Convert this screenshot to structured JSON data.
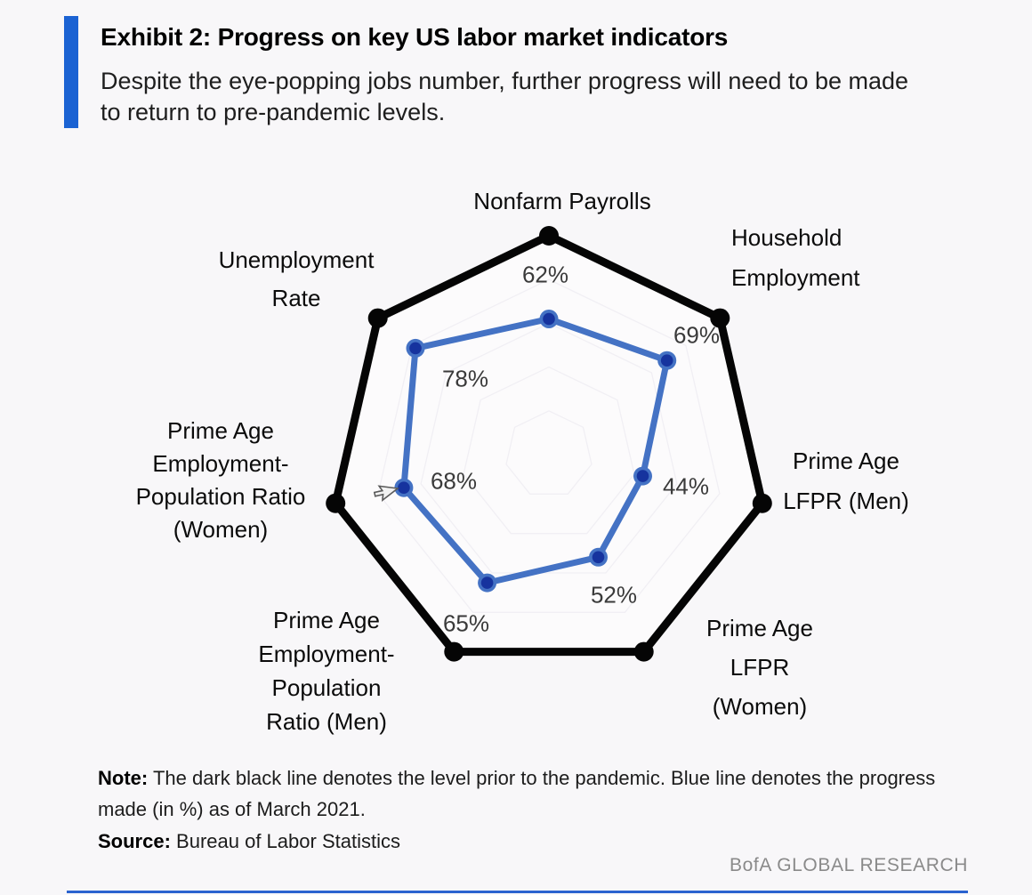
{
  "header": {
    "title": "Exhibit 2: Progress on key US labor market indicators",
    "subtitle": "Despite the eye-popping jobs number, further progress will need to be made\nto return to pre-pandemic levels."
  },
  "colors": {
    "accent_bar": "#1b63d3",
    "pre_pandemic_line": "#050505",
    "progress_line": "#4472c4",
    "progress_marker_inner": "#16339e",
    "gridline": "#e2dfe8",
    "bottom_rule": "#2a63cf"
  },
  "chart_data": {
    "type": "radar",
    "title": "Progress on key US labor market indicators",
    "axes": [
      {
        "label": "Nonfarm Payrolls",
        "value": 62
      },
      {
        "label": "Household\nEmployment",
        "value": 69
      },
      {
        "label": "Prime Age\nLFPR (Men)",
        "value": 44
      },
      {
        "label": "Prime Age\nLFPR\n(Women)",
        "value": 52
      },
      {
        "label": "Prime Age\nEmployment-\nPopulation\nRatio (Men)",
        "value": 65
      },
      {
        "label": "Prime Age\nEmployment-\nPopulation Ratio\n(Women)",
        "value": 68
      },
      {
        "label": "Unemployment\nRate",
        "value": 78
      }
    ],
    "series": [
      {
        "name": "Pre-pandemic level",
        "color": "#050505",
        "values": [
          100,
          100,
          100,
          100,
          100,
          100,
          100
        ]
      },
      {
        "name": "Progress as of March 2021",
        "color": "#4472c4",
        "values": [
          62,
          69,
          44,
          52,
          65,
          68,
          78
        ]
      }
    ],
    "value_labels": [
      "62%",
      "69%",
      "44%",
      "52%",
      "65%",
      "68%",
      "78%"
    ],
    "scale": {
      "min": 0,
      "max": 100,
      "gridline_levels_pct": [
        20,
        40,
        60,
        80
      ]
    },
    "legend_position": "none"
  },
  "footnote": {
    "note_label": "Note:",
    "note_text": "The dark black line denotes the level prior to the pandemic. Blue line denotes the progress\nmade (in %) as of March 2021.",
    "source_label": "Source:",
    "source_text": "Bureau of Labor Statistics",
    "brand": "BofA GLOBAL RESEARCH"
  }
}
